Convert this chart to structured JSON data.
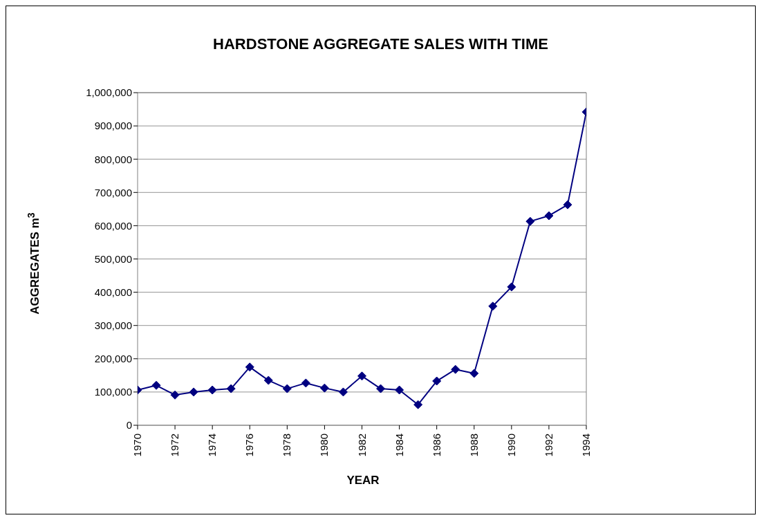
{
  "chart_data": {
    "type": "line",
    "title": "HARDSTONE AGGREGATE SALES WITH TIME",
    "xlabel": "YEAR",
    "ylabel": "AGGREGATES m$^{3}$",
    "x": [
      1970,
      1971,
      1972,
      1973,
      1974,
      1975,
      1976,
      1977,
      1978,
      1979,
      1980,
      1981,
      1982,
      1983,
      1984,
      1985,
      1986,
      1987,
      1988,
      1989,
      1990,
      1991,
      1992,
      1993,
      1994
    ],
    "series": [
      {
        "color": "#000080",
        "values": [
          106000,
          120000,
          91000,
          100000,
          106000,
          110000,
          175000,
          135000,
          110000,
          127000,
          112000,
          100000,
          148000,
          110000,
          106000,
          62000,
          133000,
          168000,
          156000,
          358000,
          416000,
          613000,
          630000,
          663000,
          942000
        ]
      }
    ],
    "xlim": [
      1970,
      1994
    ],
    "xticks": [
      1970,
      1972,
      1974,
      1976,
      1978,
      1980,
      1982,
      1984,
      1986,
      1988,
      1990,
      1992,
      1994
    ],
    "ylim": [
      0,
      1000000
    ],
    "yticks": [
      0,
      {
        "value": 100000,
        "label": "100,000"
      },
      {
        "value": 200000,
        "label": "200,000"
      },
      {
        "value": 300000,
        "label": "300,000"
      },
      {
        "value": 400000,
        "label": "400,000"
      },
      {
        "value": 500000,
        "label": "500,000"
      },
      {
        "value": 600000,
        "label": "600,000"
      },
      {
        "value": 700000,
        "label": "700,000"
      },
      {
        "value": 800000,
        "label": "800,000"
      },
      {
        "value": 900000,
        "label": "900,000"
      },
      {
        "value": 1000000,
        "label": "1,000,000"
      }
    ],
    "grid": "y",
    "marker": "diamond",
    "line_style": "solid"
  }
}
